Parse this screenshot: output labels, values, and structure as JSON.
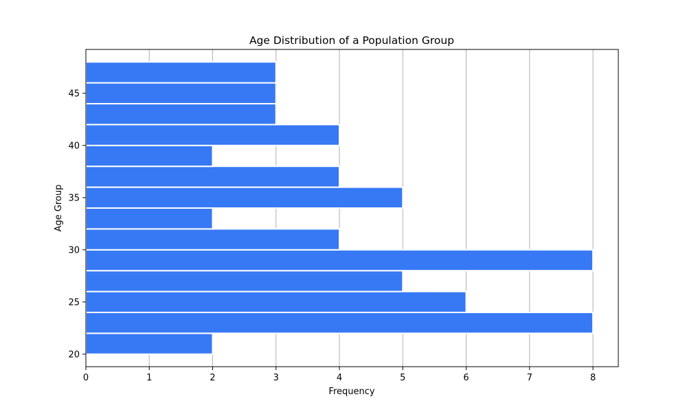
{
  "chart_data": {
    "type": "bar",
    "orientation": "horizontal",
    "title": "Age Distribution of a Population Group",
    "xlabel": "Frequency",
    "ylabel": "Age Group",
    "bins": [
      {
        "from": 20,
        "to": 22,
        "value": 2
      },
      {
        "from": 22,
        "to": 24,
        "value": 8
      },
      {
        "from": 24,
        "to": 26,
        "value": 6
      },
      {
        "from": 26,
        "to": 28,
        "value": 5
      },
      {
        "from": 28,
        "to": 30,
        "value": 8
      },
      {
        "from": 30,
        "to": 32,
        "value": 4
      },
      {
        "from": 32,
        "to": 34,
        "value": 2
      },
      {
        "from": 34,
        "to": 36,
        "value": 5
      },
      {
        "from": 36,
        "to": 38,
        "value": 4
      },
      {
        "from": 38,
        "to": 40,
        "value": 2
      },
      {
        "from": 40,
        "to": 42,
        "value": 4
      },
      {
        "from": 42,
        "to": 44,
        "value": 3
      },
      {
        "from": 44,
        "to": 46,
        "value": 3
      },
      {
        "from": 46,
        "to": 48,
        "value": 3
      }
    ],
    "xlim": [
      0,
      8.4
    ],
    "ylim": [
      18.8,
      49.2
    ],
    "xticks": [
      "0",
      "1",
      "2",
      "3",
      "4",
      "5",
      "6",
      "7",
      "8"
    ],
    "yticks": [
      "20",
      "25",
      "30",
      "35",
      "40",
      "45"
    ],
    "grid": "x-axis",
    "bar_color": "#3779F5",
    "grid_color": "#b0b0b0"
  }
}
